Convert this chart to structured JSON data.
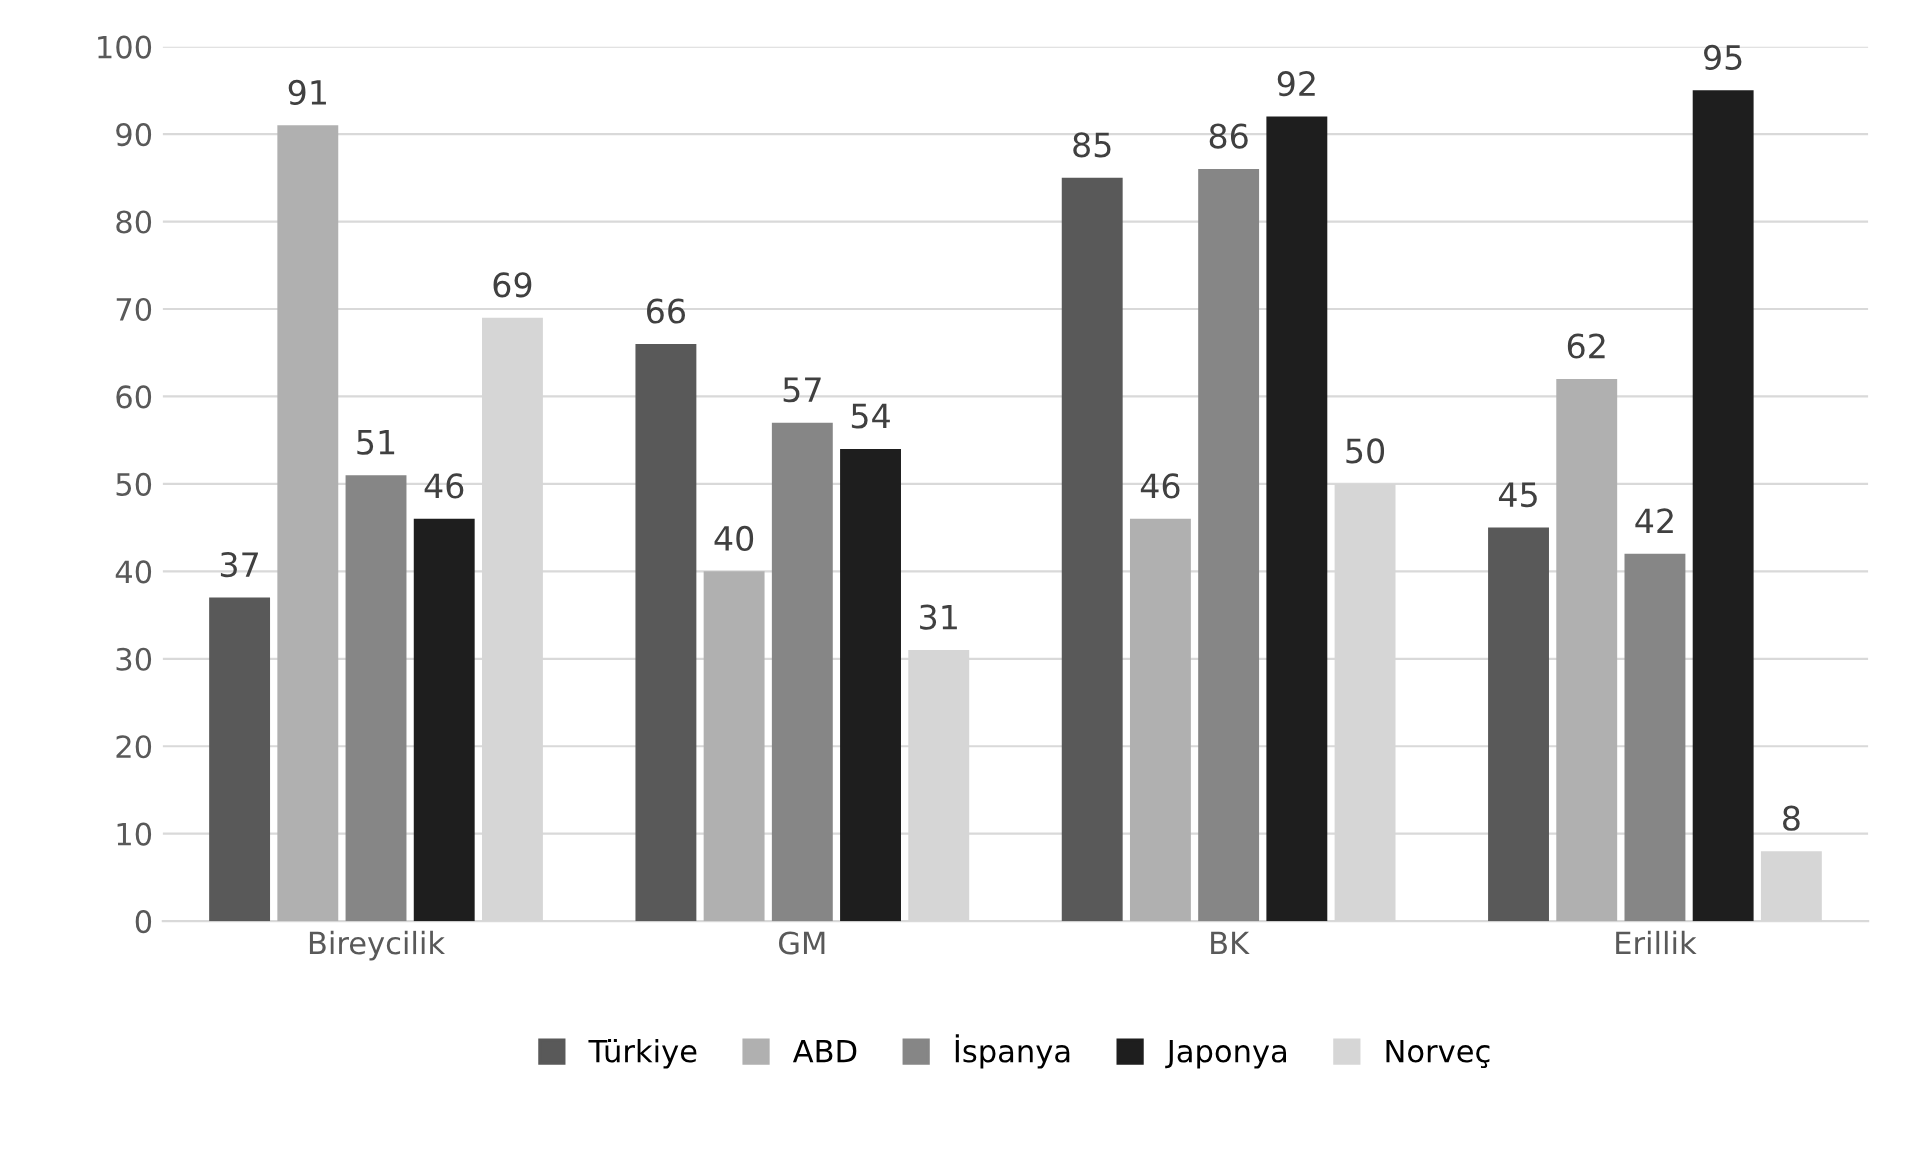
{
  "chart_data": {
    "type": "bar",
    "categories": [
      "Bireycilik",
      "GM",
      "BK",
      "Erillik"
    ],
    "series": [
      {
        "name": "Türkiye",
        "color": "#595959",
        "values": [
          37,
          66,
          85,
          45
        ]
      },
      {
        "name": "ABD",
        "color": "#b0b0b0",
        "values": [
          91,
          40,
          46,
          62
        ]
      },
      {
        "name": "İspanya",
        "color": "#868686",
        "values": [
          51,
          57,
          86,
          42
        ]
      },
      {
        "name": "Japonya",
        "color": "#1e1e1e",
        "values": [
          46,
          54,
          92,
          95
        ]
      },
      {
        "name": "Norveç",
        "color": "#d6d6d6",
        "values": [
          69,
          31,
          50,
          8
        ]
      }
    ],
    "ylim": [
      0,
      100
    ],
    "yticks": [
      0,
      10,
      20,
      30,
      40,
      50,
      60,
      70,
      80,
      90,
      100
    ],
    "grid": "y",
    "legend": "bottom",
    "data_labels": true
  }
}
